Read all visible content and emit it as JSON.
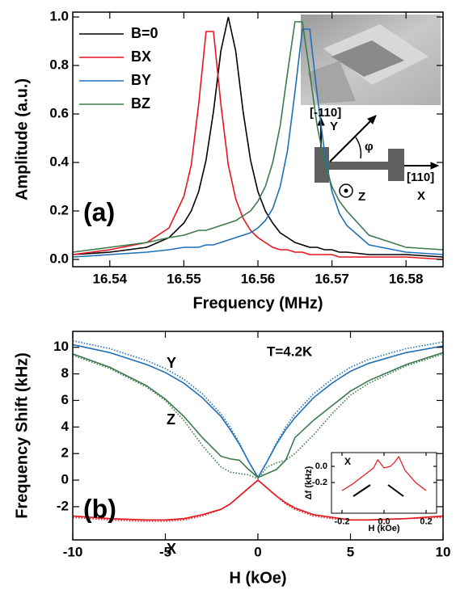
{
  "chart_data": [
    {
      "type": "line",
      "xlabel": "Frequency (MHz)",
      "ylabel": "Amplitude (a.u.)",
      "xlim": [
        16.535,
        16.585
      ],
      "ylim": [
        -0.03,
        1.02
      ],
      "xticks": [
        16.54,
        16.55,
        16.56,
        16.57,
        16.58
      ],
      "yticks": [
        {
          "value": 0,
          "label": "0.0"
        },
        0.2,
        0.4,
        0.6,
        0.8,
        {
          "value": 1,
          "label": "1.0"
        }
      ],
      "legend": "upper left",
      "x": [
        16.535,
        16.54,
        16.545,
        16.548,
        16.55,
        16.551,
        16.552,
        16.553,
        16.554,
        16.555,
        16.556,
        16.557,
        16.558,
        16.559,
        16.56,
        16.561,
        16.562,
        16.563,
        16.564,
        16.565,
        16.566,
        16.567,
        16.568,
        16.569,
        16.57,
        16.571,
        16.572,
        16.575,
        16.58,
        16.585
      ],
      "series": [
        {
          "name": "B=0",
          "color": "#000000",
          "values": [
            0.02,
            0.03,
            0.05,
            0.09,
            0.15,
            0.2,
            0.28,
            0.41,
            0.61,
            0.86,
            1.0,
            0.86,
            0.61,
            0.41,
            0.28,
            0.2,
            0.15,
            0.11,
            0.09,
            0.07,
            0.06,
            0.05,
            0.05,
            0.04,
            0.04,
            0.03,
            0.03,
            0.02,
            0.02,
            0.01
          ]
        },
        {
          "name": "BX",
          "color": "#e8141c",
          "values": [
            0.02,
            0.04,
            0.07,
            0.13,
            0.26,
            0.39,
            0.64,
            0.94,
            0.94,
            0.64,
            0.39,
            0.25,
            0.17,
            0.12,
            0.09,
            0.07,
            0.05,
            0.04,
            0.04,
            0.03,
            0.03,
            0.02,
            0.02,
            0.02,
            0.02,
            0.01,
            0.01,
            0.01,
            0.01,
            0
          ]
        },
        {
          "name": "BY",
          "color": "#1f6fb8",
          "values": [
            0.01,
            0.02,
            0.03,
            0.04,
            0.05,
            0.05,
            0.05,
            0.06,
            0.06,
            0.07,
            0.08,
            0.09,
            0.1,
            0.11,
            0.13,
            0.16,
            0.21,
            0.3,
            0.45,
            0.69,
            0.95,
            0.95,
            0.68,
            0.44,
            0.28,
            0.19,
            0.14,
            0.06,
            0.03,
            0.02
          ]
        },
        {
          "name": "BZ",
          "color": "#3c7a4a",
          "values": [
            0.03,
            0.05,
            0.07,
            0.09,
            0.1,
            0.11,
            0.12,
            0.12,
            0.13,
            0.14,
            0.15,
            0.16,
            0.18,
            0.2,
            0.24,
            0.3,
            0.4,
            0.55,
            0.77,
            0.98,
            0.98,
            0.77,
            0.55,
            0.4,
            0.3,
            0.24,
            0.2,
            0.1,
            0.05,
            0.04
          ]
        }
      ],
      "annotations": [
        "(a)",
        "[-110]",
        "Y",
        "φ",
        "Z",
        "[110]",
        "X"
      ]
    },
    {
      "type": "line",
      "xlabel": "H (kOe)",
      "ylabel": "Frequency Shift (kHz)",
      "xlim": [
        -10,
        10
      ],
      "ylim": [
        -4.5,
        11.2
      ],
      "xticks": [
        -10,
        -5,
        0,
        5,
        10
      ],
      "yticks": [
        -2,
        0,
        2,
        4,
        6,
        8,
        10
      ],
      "x": [
        -10,
        -8,
        -6,
        -5,
        -4,
        -3,
        -2,
        -1.5,
        -1,
        -0.5,
        0,
        0.5,
        1,
        1.5,
        2,
        3,
        4,
        5,
        6,
        8,
        10
      ],
      "series": [
        {
          "color": "#1f6fb8",
          "style": "solid",
          "values": [
            10.2,
            9.6,
            8.7,
            8.1,
            7.3,
            6.2,
            4.8,
            3.8,
            2.7,
            1.4,
            0.2,
            1.4,
            2.7,
            3.8,
            4.7,
            6.2,
            7.3,
            8.2,
            8.8,
            9.6,
            10.1
          ]
        },
        {
          "color": "#1f6fb8",
          "style": "dotted",
          "values": [
            10.5,
            9.9,
            9.0,
            8.4,
            7.6,
            6.5,
            5.0,
            4.0,
            2.8,
            1.4,
            0.2,
            1.4,
            2.8,
            4.0,
            5.0,
            6.5,
            7.6,
            8.5,
            9.1,
            9.9,
            10.4
          ]
        },
        {
          "color": "#3c7a4a",
          "style": "solid",
          "values": [
            9.5,
            8.5,
            7.1,
            6.1,
            4.8,
            3.2,
            1.8,
            1.6,
            1.5,
            0.8,
            0.2,
            0.5,
            0.8,
            1.5,
            3.2,
            4.5,
            5.6,
            6.7,
            7.5,
            8.7,
            9.6
          ]
        },
        {
          "color": "#3c7a4a",
          "style": "dotted",
          "values": [
            9.4,
            8.4,
            7.0,
            6.0,
            4.5,
            2.6,
            1.0,
            0.6,
            0.5,
            0.4,
            0.1,
            1.0,
            1.3,
            1.5,
            2.0,
            3.4,
            5.0,
            6.4,
            7.3,
            8.6,
            9.5
          ]
        },
        {
          "color": "#e8141c",
          "style": "solid",
          "values": [
            -2.7,
            -2.9,
            -3.0,
            -3.0,
            -2.9,
            -2.6,
            -2.2,
            -1.8,
            -1.2,
            -0.6,
            0,
            -0.6,
            -1.2,
            -1.7,
            -2.1,
            -2.6,
            -2.8,
            -3.0,
            -3.0,
            -2.9,
            -2.7
          ]
        },
        {
          "color": "#e8141c",
          "style": "dotted",
          "values": [
            -2.8,
            -3.0,
            -3.1,
            -3.1,
            -3.0,
            -2.7,
            -2.2,
            -1.8,
            -1.2,
            -0.6,
            0,
            -0.6,
            -1.2,
            -1.8,
            -2.2,
            -2.7,
            -2.9,
            -3.0,
            -3.0,
            -2.9,
            -2.8
          ]
        }
      ],
      "annotations": [
        "(b)",
        "T=4.2K",
        "Y",
        "Z",
        "X"
      ]
    },
    {
      "type": "line",
      "xlabel": "H (kOe)",
      "ylabel": "Δf (kHz)",
      "xlim": [
        -0.25,
        0.25
      ],
      "ylim": [
        -0.58,
        0.17
      ],
      "xticks": [
        -0.2,
        {
          "value": 0,
          "label": "0.0"
        },
        0.2
      ],
      "yticks": [
        -0.2,
        {
          "value": 0,
          "label": "0.0"
        }
      ],
      "x": [
        -0.2,
        -0.15,
        -0.1,
        -0.05,
        -0.03,
        0,
        0.03,
        0.05,
        0.07,
        0.1,
        0.15,
        0.2
      ],
      "series": [
        {
          "color": "#e8141c",
          "style": "solid",
          "values": [
            -0.3,
            -0.22,
            -0.12,
            -0.02,
            0.08,
            -0.02,
            0.0,
            0.05,
            0.12,
            -0.05,
            -0.2,
            -0.3
          ]
        }
      ],
      "annotations": [
        "X"
      ]
    }
  ]
}
